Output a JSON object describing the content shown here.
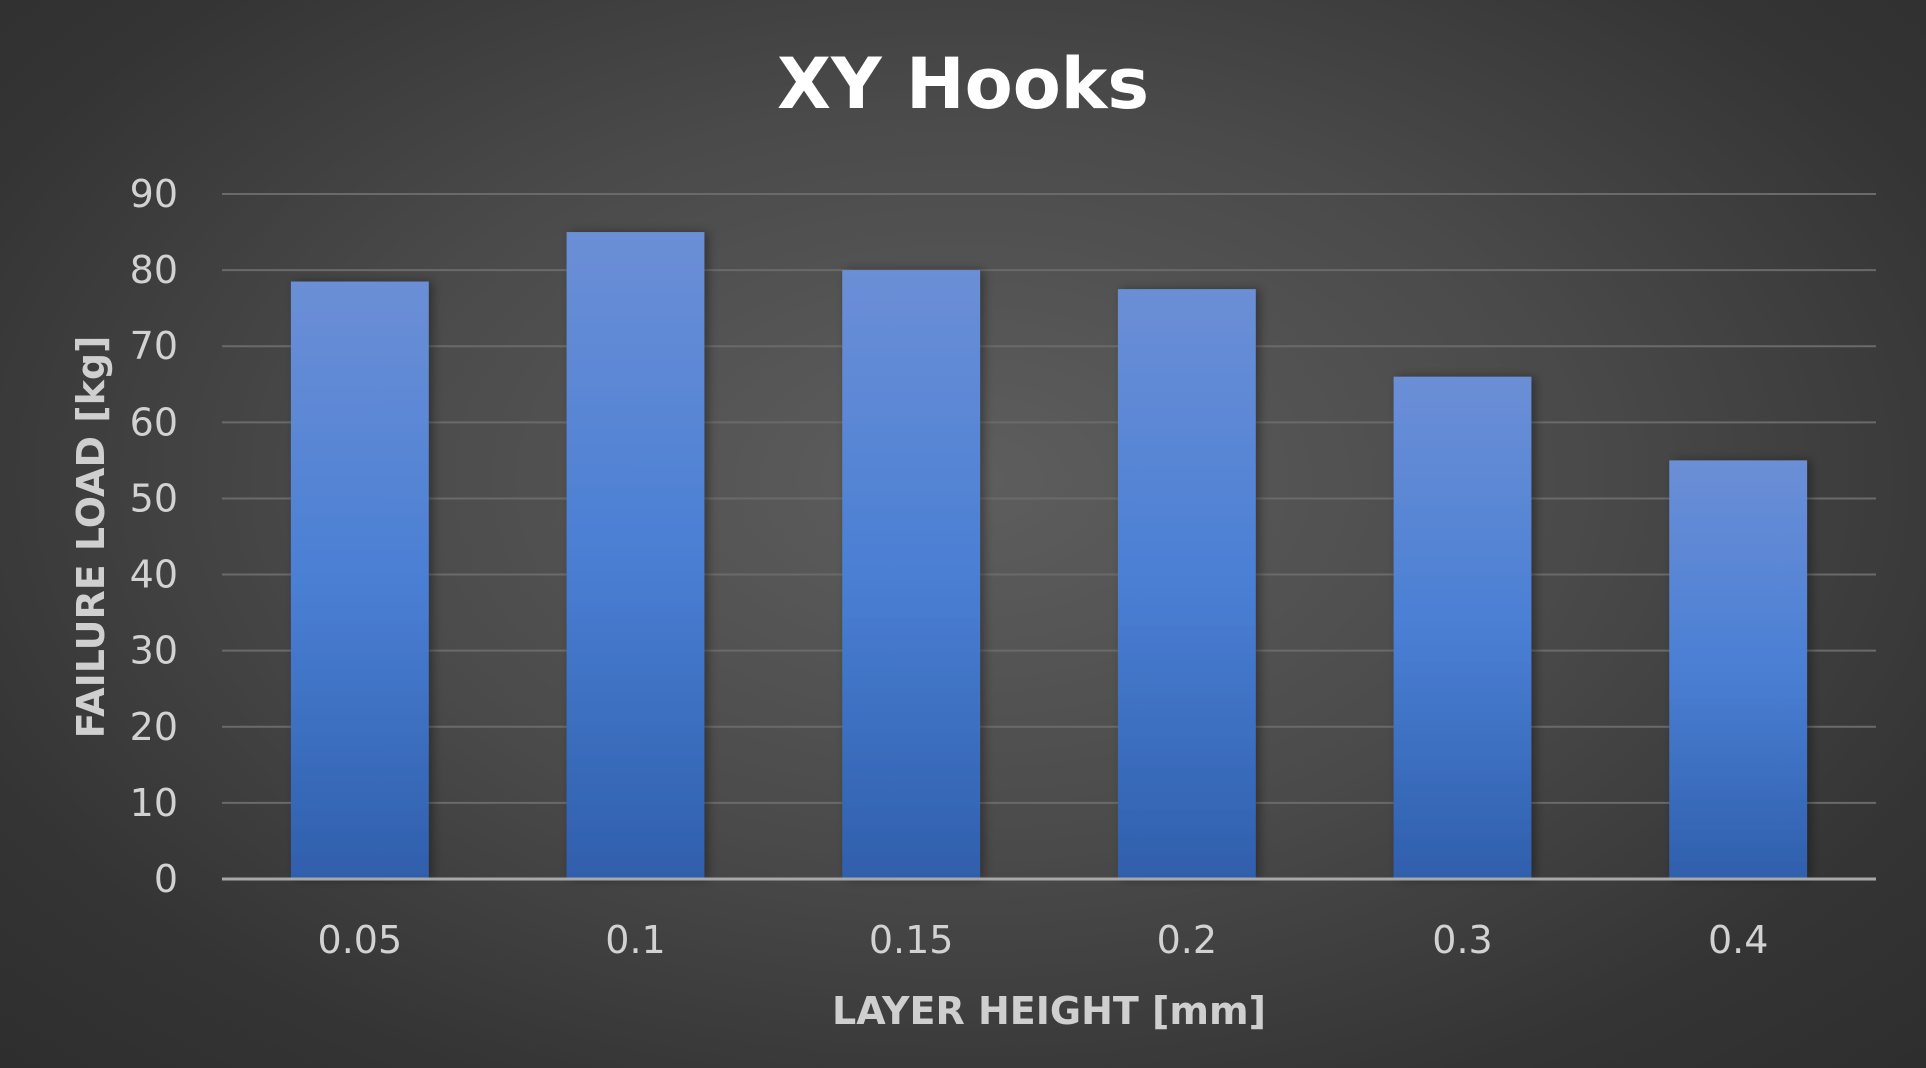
{
  "chart_data": {
    "type": "bar",
    "title": "XY Hooks",
    "xlabel": "LAYER HEIGHT [mm]",
    "ylabel": "FAILURE LOAD [kg]",
    "categories": [
      "0.05",
      "0.1",
      "0.15",
      "0.2",
      "0.3",
      "0.4"
    ],
    "values": [
      78.5,
      85,
      80,
      77.5,
      66,
      55
    ],
    "ylim": [
      0,
      90
    ],
    "yticks": [
      0,
      10,
      20,
      30,
      40,
      50,
      60,
      70,
      80,
      90
    ],
    "grid": true,
    "legend": "none",
    "colors": {
      "bar_top": "#6b8fd6",
      "bar_mid": "#4a7fd4",
      "bar_bottom": "#2f5fac",
      "grid": "#6a6a6a",
      "axis": "#a8a8a8"
    }
  }
}
